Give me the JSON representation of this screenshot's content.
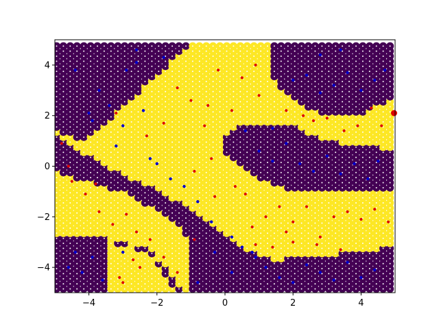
{
  "chart_data": {
    "type": "scatter",
    "title": "",
    "xlabel": "",
    "ylabel": "",
    "xlim": [
      -5,
      5
    ],
    "ylim": [
      -5,
      5
    ],
    "grid": false,
    "xticks": [
      -4,
      -2,
      0,
      2,
      4
    ],
    "yticks": [
      -4,
      -2,
      0,
      2,
      4
    ],
    "xtick_labels": [
      "−4",
      "−2",
      "0",
      "2",
      "4"
    ],
    "ytick_labels": [
      "−4",
      "−2",
      "0",
      "2",
      "4"
    ],
    "colors": {
      "class_0": "#440154",
      "class_1": "#fde725",
      "sample_class_0": "#0000cc",
      "sample_class_1": "#dd0000"
    },
    "series": [
      {
        "marker": "large circle, colored by predicted class",
        "grid_x": {
          "start": -4.95,
          "stop": 4.95,
          "step": 0.2
        },
        "grid_y": {
          "start": -4.85,
          "stop": 4.85,
          "step": 0.2
        },
        "class_1_polygons": [
          [
            [
              -5.0,
              1.4
            ],
            [
              -4.0,
              0.4
            ],
            [
              -3.0,
              -0.3
            ],
            [
              -2.0,
              -0.9
            ],
            [
              -1.0,
              -1.7
            ],
            [
              0.0,
              -2.6
            ],
            [
              0.6,
              -3.3
            ],
            [
              1.0,
              -3.5
            ],
            [
              1.4,
              -3.7
            ],
            [
              3.0,
              -3.5
            ],
            [
              4.9,
              -3.2
            ],
            [
              4.9,
              -0.9
            ],
            [
              3.0,
              -1.0
            ],
            [
              2.0,
              -1.0
            ],
            [
              1.0,
              -0.5
            ],
            [
              0.0,
              0.4
            ],
            [
              0.0,
              1.2
            ],
            [
              0.4,
              1.7
            ],
            [
              2.0,
              1.6
            ],
            [
              3.0,
              1.0
            ],
            [
              4.9,
              0.7
            ],
            [
              4.9,
              2.7
            ],
            [
              4.0,
              2.0
            ],
            [
              3.0,
              2.0
            ],
            [
              2.0,
              2.6
            ],
            [
              1.4,
              3.5
            ],
            [
              1.4,
              4.9
            ],
            [
              -1.0,
              4.9
            ],
            [
              -2.0,
              3.6
            ],
            [
              -3.0,
              2.4
            ],
            [
              -3.5,
              1.7
            ],
            [
              -4.2,
              1.0
            ],
            [
              -5.0,
              1.5
            ],
            [
              -5.0,
              -0.2
            ],
            [
              -4.0,
              -0.6
            ],
            [
              -3.0,
              -1.0
            ],
            [
              -2.0,
              -1.7
            ],
            [
              -1.2,
              -2.6
            ],
            [
              -1.0,
              -3.2
            ],
            [
              -1.0,
              -4.9
            ],
            [
              -1.2,
              -5.0
            ],
            [
              -2.2,
              -3.2
            ],
            [
              -3.0,
              -3.0
            ],
            [
              -3.5,
              -2.8
            ],
            [
              -4.0,
              -2.7
            ],
            [
              -5.0,
              -2.7
            ]
          ],
          [
            [
              -3.5,
              -3.0
            ],
            [
              -3.4,
              -5.0
            ],
            [
              -1.4,
              -5.0
            ],
            [
              -2.2,
              -3.4
            ]
          ]
        ],
        "note_values_estimated": true
      },
      {
        "marker": "small dot, training samples",
        "class_0_points": [
          [
            -4.0,
            2.1
          ],
          [
            -3.9,
            1.8
          ],
          [
            -3.7,
            3.0
          ],
          [
            -3.4,
            2.4
          ],
          [
            -3.2,
            0.8
          ],
          [
            -3.0,
            1.6
          ],
          [
            -2.9,
            3.8
          ],
          [
            -2.6,
            4.1
          ],
          [
            -2.4,
            2.2
          ],
          [
            -2.2,
            0.3
          ],
          [
            -2.0,
            0.1
          ],
          [
            -1.8,
            4.3
          ],
          [
            -1.6,
            -0.5
          ],
          [
            -1.2,
            -0.8
          ],
          [
            -0.8,
            -1.4
          ],
          [
            -0.4,
            -2.2
          ],
          [
            0.2,
            -2.8
          ],
          [
            0.5,
            -3.2
          ],
          [
            0.8,
            -3.4
          ],
          [
            1.2,
            -4.0
          ],
          [
            1.6,
            -4.4
          ],
          [
            2.0,
            -4.6
          ],
          [
            2.4,
            -3.9
          ],
          [
            2.8,
            -4.2
          ],
          [
            3.2,
            -4.5
          ],
          [
            3.6,
            -3.8
          ],
          [
            4.0,
            -4.4
          ],
          [
            4.4,
            -4.1
          ],
          [
            -4.4,
            -3.4
          ],
          [
            -4.2,
            -4.2
          ],
          [
            -3.9,
            -3.6
          ],
          [
            -3.6,
            -4.5
          ],
          [
            -4.6,
            -4.0
          ],
          [
            1.0,
            0.6
          ],
          [
            1.4,
            0.2
          ],
          [
            1.8,
            0.9
          ],
          [
            2.2,
            0.1
          ],
          [
            2.6,
            -0.2
          ],
          [
            3.0,
            0.4
          ],
          [
            3.4,
            -0.3
          ],
          [
            3.8,
            0.1
          ],
          [
            4.2,
            -0.5
          ],
          [
            4.5,
            0.2
          ],
          [
            2.0,
            3.4
          ],
          [
            2.4,
            3.6
          ],
          [
            2.8,
            2.9
          ],
          [
            3.2,
            3.2
          ],
          [
            3.6,
            3.7
          ],
          [
            4.0,
            3.0
          ],
          [
            4.4,
            3.4
          ],
          [
            4.7,
            3.8
          ],
          [
            0.6,
            1.4
          ],
          [
            -0.3,
            -3.4
          ],
          [
            0.2,
            -4.2
          ],
          [
            0.9,
            -3.6
          ],
          [
            -3.0,
            -3.4
          ],
          [
            -2.6,
            4.6
          ],
          [
            -4.4,
            3.8
          ],
          [
            -0.8,
            -4.6
          ],
          [
            1.4,
            1.5
          ],
          [
            2.8,
            4.4
          ],
          [
            3.4,
            4.6
          ]
        ],
        "class_1_points": [
          [
            -4.5,
            -0.6
          ],
          [
            -4.1,
            -1.1
          ],
          [
            -3.7,
            -1.8
          ],
          [
            -3.3,
            -2.3
          ],
          [
            -2.9,
            -1.9
          ],
          [
            -2.6,
            -2.6
          ],
          [
            -2.2,
            -2.9
          ],
          [
            -1.8,
            -3.6
          ],
          [
            -1.4,
            -4.2
          ],
          [
            -3.1,
            -4.4
          ],
          [
            -3.0,
            -4.6
          ],
          [
            -2.5,
            -4.0
          ],
          [
            -4.8,
            0.9
          ],
          [
            -4.6,
            0.0
          ],
          [
            -3.8,
            -0.7
          ],
          [
            -1.4,
            3.1
          ],
          [
            -1.0,
            2.6
          ],
          [
            -0.6,
            1.6
          ],
          [
            -0.2,
            3.8
          ],
          [
            0.2,
            2.2
          ],
          [
            0.5,
            3.5
          ],
          [
            0.9,
            4.0
          ],
          [
            1.0,
            2.8
          ],
          [
            -0.4,
            0.3
          ],
          [
            -0.9,
            -0.2
          ],
          [
            -0.3,
            -1.2
          ],
          [
            0.3,
            -0.8
          ],
          [
            0.6,
            -1.1
          ],
          [
            0.8,
            -2.4
          ],
          [
            1.2,
            -2.0
          ],
          [
            1.6,
            -1.6
          ],
          [
            2.0,
            -2.2
          ],
          [
            2.4,
            -1.6
          ],
          [
            2.8,
            -2.8
          ],
          [
            3.2,
            -2.0
          ],
          [
            3.6,
            -1.8
          ],
          [
            4.0,
            -2.1
          ],
          [
            4.4,
            -1.7
          ],
          [
            4.8,
            -2.2
          ],
          [
            1.8,
            2.2
          ],
          [
            2.3,
            2.0
          ],
          [
            2.6,
            1.8
          ],
          [
            3.0,
            1.9
          ],
          [
            3.5,
            1.4
          ],
          [
            3.9,
            1.6
          ],
          [
            4.3,
            2.3
          ],
          [
            4.6,
            1.6
          ],
          [
            4.97,
            2.1
          ],
          [
            1.4,
            -3.2
          ],
          [
            2.0,
            -3.0
          ],
          [
            2.7,
            -3.1
          ],
          [
            3.4,
            -3.3
          ],
          [
            -2.3,
            1.2
          ],
          [
            -1.8,
            1.7
          ],
          [
            -3.2,
            2.1
          ],
          [
            -0.5,
            2.4
          ],
          [
            1.8,
            -2.6
          ],
          [
            -2.7,
            -3.7
          ],
          [
            0.9,
            -3.1
          ],
          [
            -0.9,
            -2.9
          ]
        ]
      }
    ]
  }
}
